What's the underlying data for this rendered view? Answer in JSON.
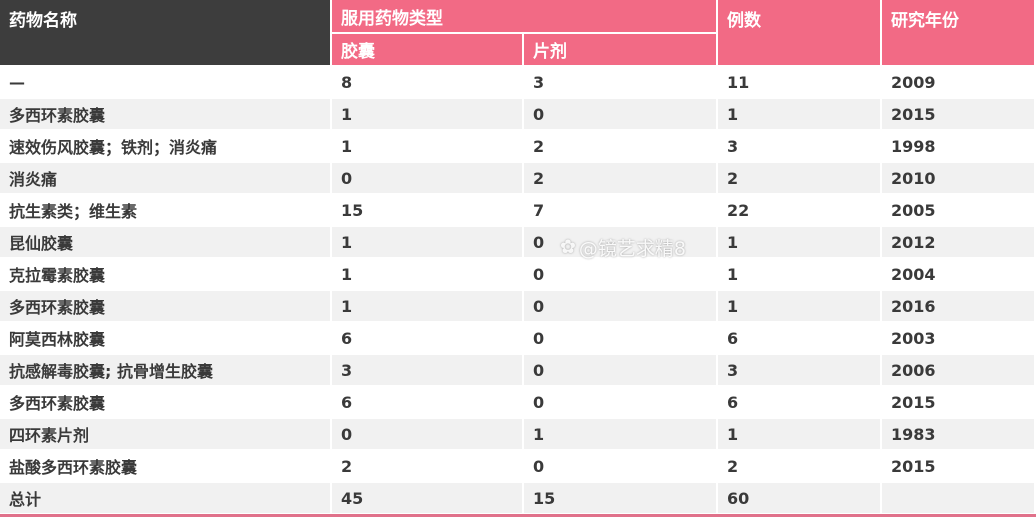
{
  "header": {
    "name": "药物名称",
    "type_group": "服用药物类型",
    "capsule": "胶囊",
    "tablet": "片剂",
    "cases": "例数",
    "year": "研究年份"
  },
  "rows": [
    [
      "—",
      "8",
      "3",
      "11",
      "2009"
    ],
    [
      "多西环素胶囊",
      "1",
      "0",
      "1",
      "2015"
    ],
    [
      "速效伤风胶囊；铁剂；消炎痛",
      "1",
      "2",
      "3",
      "1998"
    ],
    [
      "消炎痛",
      "0",
      "2",
      "2",
      "2010"
    ],
    [
      "抗生素类；维生素",
      "15",
      "7",
      "22",
      "2005"
    ],
    [
      "昆仙胶囊",
      "1",
      "0",
      "1",
      "2012"
    ],
    [
      "克拉霉素胶囊",
      "1",
      "0",
      "1",
      "2004"
    ],
    [
      "多西环素胶囊",
      "1",
      "0",
      "1",
      "2016"
    ],
    [
      "阿莫西林胶囊",
      "6",
      "0",
      "6",
      "2003"
    ],
    [
      "抗感解毒胶囊; 抗骨增生胶囊",
      "3",
      "0",
      "3",
      "2006"
    ],
    [
      "多西环素胶囊",
      "6",
      "0",
      "6",
      "2015"
    ],
    [
      "四环素片剂",
      "0",
      "1",
      "1",
      "1983"
    ],
    [
      "盐酸多西环素胶囊",
      "2",
      "0",
      "2",
      "2015"
    ],
    [
      "总计",
      "45",
      "15",
      "60",
      ""
    ]
  ],
  "watermark": "@镜艺求精8",
  "colors": {
    "header_dark": "#3d3d3d",
    "header_pink": "#f26a85",
    "row_alt": "#f1f1f1"
  }
}
